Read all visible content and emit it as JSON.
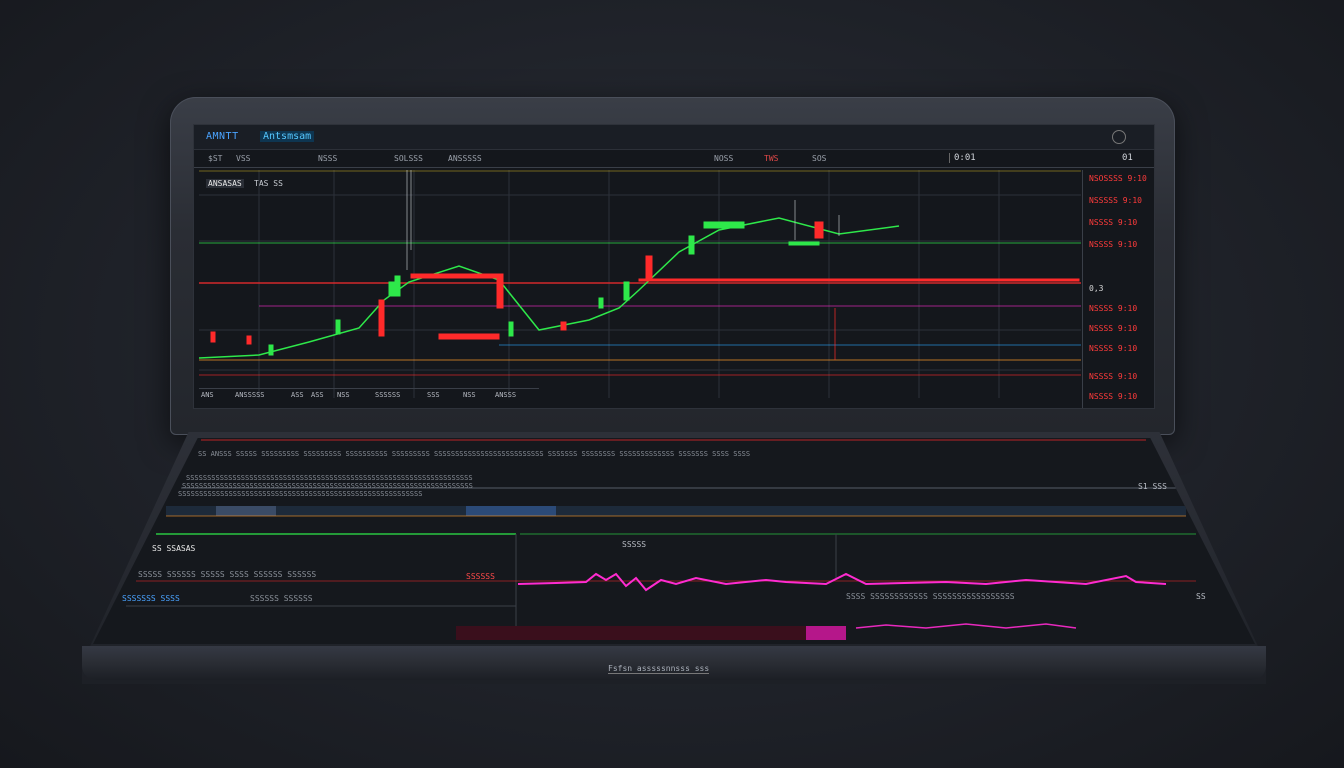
{
  "window": {
    "logo_text": "AMNTT",
    "app_title": "Antsmsam"
  },
  "toolbar": {
    "items": [
      "$ST",
      "VSS",
      "NSSS",
      "SOLSSS",
      "ANSSSSS",
      "NOSS",
      "TWS",
      "SOS"
    ],
    "price": "0:01",
    "price_right": "01"
  },
  "chart": {
    "label": "ANSASAS",
    "sublabel": "TAS SS"
  },
  "price_axis": {
    "labels": [
      "NSOSSSS 9:10",
      "NSSSSS 9:10",
      "NSSSS 9:10",
      "NSSSS 9:10",
      "0,3",
      "NSSSS 9:10",
      "NSSSS 9:10",
      "NSSSS 9:10",
      "NSSSS 9:10",
      "NSSSS 9:10"
    ],
    "label_colors": [
      "red",
      "red",
      "red",
      "red",
      "white",
      "red",
      "red",
      "red",
      "red",
      "red"
    ]
  },
  "bottom_row": {
    "items": [
      "ANS",
      "ANSSSSS",
      "ASS",
      "ASS",
      "NSS",
      "SSSSSS",
      "SSS",
      "NSS",
      "ANSSS"
    ]
  },
  "deck": {
    "header_line": "SS ANSSS SSSSS SSSSSSSSS SSSSSSSSS SSSSSSSSSS SSSSSSSSS SSSSSSSSSSSSSSSSSSSSSSSSSS SSSSSSS SSSSSSSS SSSSSSSSSSSSS SSSSSSS SSSS SSSS",
    "line2": "SSSSSSSSSSSSSSSSSSSSSSSSSSSSSSSSSSSSSSSSSSSSSSSSSSSSSSSSSSSSSSSSSSSS",
    "line3": "SSSSSSSSSSSSSSSSSSSSSSSSSSSSSSSSSSSSSSSSSSSSSSSSSSSSSSSSSSSSSSSSSSSSS",
    "line4": "SSSSSSSSSSSSSSSSSSSSSSSSSSSSSSSSSSSSSSSSSSSSSSSSSSSSSSSSSS",
    "right_value": "S1 SSS",
    "panel_label": "SS SSASAS",
    "center_label": "SSSSS",
    "row_a": "SSSSS SSSSSS SSSSS SSSS SSSSSS SSSSSS",
    "row_a_red": "SSSSSS",
    "row_b": "SSSSSSS SSSS",
    "row_b2": "SSSSSS SSSSSS",
    "row_c": "SSSS SSSSSSSSSSSS SSSSSSSSSSSSSSSSS",
    "small_right": "SS",
    "brand": "Fsfsn asssssnnsss sss"
  },
  "colors": {
    "bull": "#2ee84a",
    "bear": "#ff2a2a",
    "magenta": "#ff2bd0",
    "accent_blue": "#4aa3ff"
  }
}
